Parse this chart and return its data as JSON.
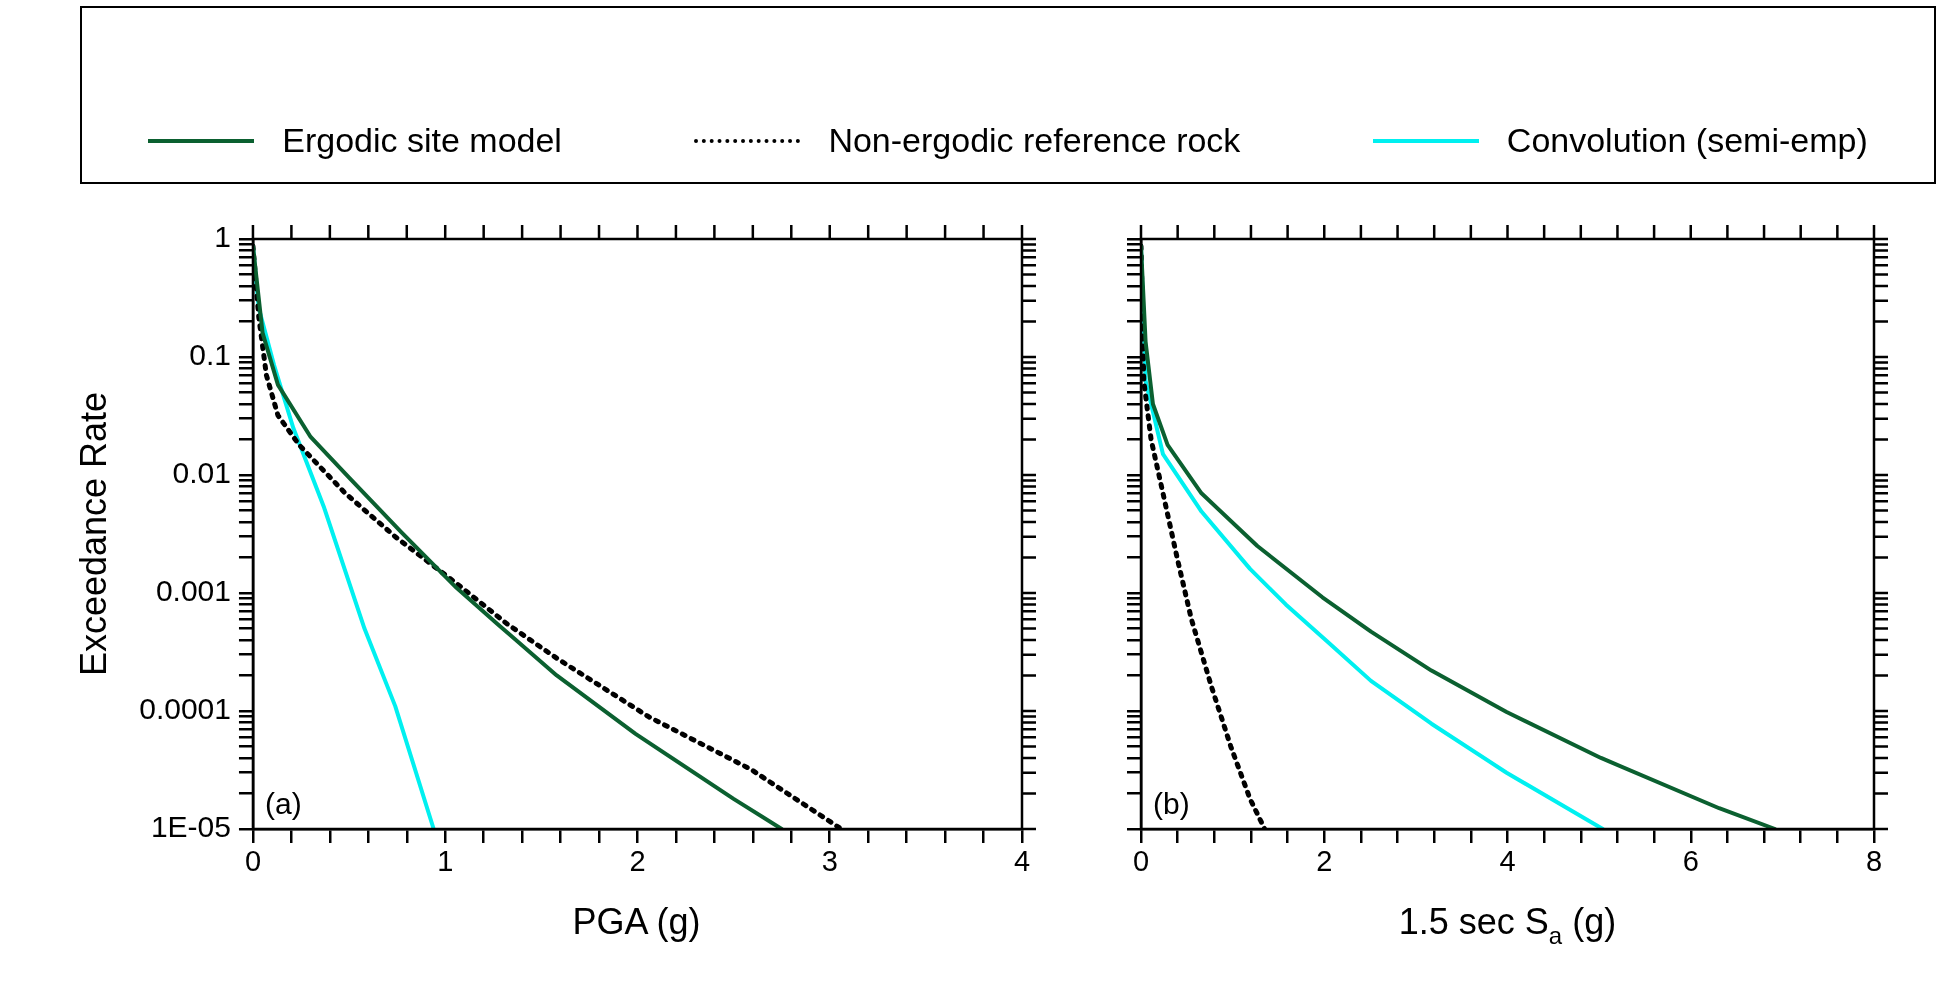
{
  "chart_data": [
    {
      "type": "line",
      "xlabel": "PGA (g)",
      "ylabel": "Exceedance Rate",
      "log": "y",
      "legend": "top",
      "tick_labels": "xy",
      "annotations": [
        "(a)"
      ],
      "xlim": [
        0,
        4
      ],
      "xticks": [
        0,
        {
          "value": 0.2,
          "label": null
        },
        {
          "value": 0.4,
          "label": null
        },
        {
          "value": 0.6,
          "label": null
        },
        {
          "value": 0.8,
          "label": null
        },
        1,
        {
          "value": 1.2,
          "label": null
        },
        {
          "value": 1.4,
          "label": null
        },
        {
          "value": 1.6,
          "label": null
        },
        {
          "value": 1.8,
          "label": null
        },
        2,
        {
          "value": 2.2,
          "label": null
        },
        {
          "value": 2.4,
          "label": null
        },
        {
          "value": 2.6,
          "label": null
        },
        {
          "value": 2.8,
          "label": null
        },
        3,
        {
          "value": 3.2,
          "label": null
        },
        {
          "value": 3.4,
          "label": null
        },
        {
          "value": 3.6,
          "label": null
        },
        {
          "value": 3.8,
          "label": null
        },
        4
      ],
      "ylim": [
        1e-05,
        1
      ],
      "yticks": [
        {
          "value": 1e-05,
          "label": "1E-05"
        },
        {
          "value": 2e-05,
          "label": null
        },
        {
          "value": 3e-05,
          "label": null
        },
        {
          "value": 4e-05,
          "label": null
        },
        {
          "value": 5e-05,
          "label": null
        },
        {
          "value": 6e-05,
          "label": null
        },
        {
          "value": 7e-05,
          "label": null
        },
        {
          "value": 8e-05,
          "label": null
        },
        {
          "value": 9e-05,
          "label": null
        },
        0.0001,
        {
          "value": 0.0002,
          "label": null
        },
        {
          "value": 0.0003,
          "label": null
        },
        {
          "value": 0.0004,
          "label": null
        },
        {
          "value": 0.0005,
          "label": null
        },
        {
          "value": 0.0006,
          "label": null
        },
        {
          "value": 0.0007,
          "label": null
        },
        {
          "value": 0.0008,
          "label": null
        },
        {
          "value": 0.0009,
          "label": null
        },
        0.001,
        {
          "value": 0.002,
          "label": null
        },
        {
          "value": 0.003,
          "label": null
        },
        {
          "value": 0.004,
          "label": null
        },
        {
          "value": 0.005,
          "label": null
        },
        {
          "value": 0.006,
          "label": null
        },
        {
          "value": 0.007,
          "label": null
        },
        {
          "value": 0.008,
          "label": null
        },
        {
          "value": 0.009,
          "label": null
        },
        0.01,
        {
          "value": 0.02,
          "label": null
        },
        {
          "value": 0.03,
          "label": null
        },
        {
          "value": 0.04,
          "label": null
        },
        {
          "value": 0.05,
          "label": null
        },
        {
          "value": 0.06,
          "label": null
        },
        {
          "value": 0.07,
          "label": null
        },
        {
          "value": 0.08,
          "label": null
        },
        {
          "value": 0.09,
          "label": null
        },
        0.1,
        {
          "value": 0.2,
          "label": null
        },
        {
          "value": 0.3,
          "label": null
        },
        {
          "value": 0.4,
          "label": null
        },
        {
          "value": 0.5,
          "label": null
        },
        {
          "value": 0.6,
          "label": null
        },
        {
          "value": 0.7,
          "label": null
        },
        {
          "value": 0.8,
          "label": null
        },
        {
          "value": 0.9,
          "label": null
        },
        1
      ],
      "series": [
        {
          "name": "Ergodic site model",
          "color": "#0b6030",
          "line_style": "solid",
          "x": [
            0,
            0.05,
            0.13,
            0.3,
            0.5,
            0.77,
            1.06,
            1.27,
            1.58,
            1.99,
            2.5,
            2.75
          ],
          "values": [
            0.87,
            0.16,
            0.058,
            0.021,
            0.0095,
            0.0033,
            0.0011,
            0.00055,
            0.0002,
            6.4e-05,
            1.8e-05,
            1e-05
          ]
        },
        {
          "name": "Non-ergodic reference rock",
          "color": "#000000",
          "line_style": "dotted",
          "x": [
            0,
            0.03,
            0.07,
            0.13,
            0.24,
            0.48,
            0.74,
            1.06,
            1.32,
            1.58,
            2.06,
            2.59,
            3.06
          ],
          "values": [
            0.87,
            0.22,
            0.07,
            0.032,
            0.018,
            0.007,
            0.003,
            0.0012,
            0.00055,
            0.00028,
            8.9e-05,
            3.2e-05,
            1e-05
          ]
        },
        {
          "name": "Convolution (semi-emp)",
          "color": "#00f0f0",
          "line_style": "solid",
          "x": [
            0,
            0.03,
            0.11,
            0.21,
            0.37,
            0.58,
            0.74,
            0.94
          ],
          "values": [
            0.87,
            0.26,
            0.085,
            0.025,
            0.0053,
            0.0005,
            0.00011,
            1e-05
          ]
        }
      ]
    },
    {
      "type": "line",
      "xlabel": "1.5 sec S$_{a}$ (g)",
      "log": "y",
      "legend": "top",
      "tick_labels": "x",
      "annotations": [
        "(b)"
      ],
      "xlim": [
        0,
        8
      ],
      "xticks": [
        0,
        {
          "value": 0.4,
          "label": null
        },
        {
          "value": 0.8,
          "label": null
        },
        {
          "value": 1.2,
          "label": null
        },
        {
          "value": 1.6,
          "label": null
        },
        2,
        {
          "value": 2.4,
          "label": null
        },
        {
          "value": 2.8,
          "label": null
        },
        {
          "value": 3.2,
          "label": null
        },
        {
          "value": 3.6,
          "label": null
        },
        4,
        {
          "value": 4.4,
          "label": null
        },
        {
          "value": 4.8,
          "label": null
        },
        {
          "value": 5.2,
          "label": null
        },
        {
          "value": 5.6,
          "label": null
        },
        6,
        {
          "value": 6.4,
          "label": null
        },
        {
          "value": 6.8,
          "label": null
        },
        {
          "value": 7.2,
          "label": null
        },
        {
          "value": 7.6,
          "label": null
        },
        8
      ],
      "ylim": [
        1e-05,
        1
      ],
      "yticks": [
        {
          "value": 1e-05,
          "label": null
        },
        {
          "value": 2e-05,
          "label": null
        },
        {
          "value": 3e-05,
          "label": null
        },
        {
          "value": 4e-05,
          "label": null
        },
        {
          "value": 5e-05,
          "label": null
        },
        {
          "value": 6e-05,
          "label": null
        },
        {
          "value": 7e-05,
          "label": null
        },
        {
          "value": 8e-05,
          "label": null
        },
        {
          "value": 9e-05,
          "label": null
        },
        {
          "value": 0.0001,
          "label": null
        },
        {
          "value": 0.0002,
          "label": null
        },
        {
          "value": 0.0003,
          "label": null
        },
        {
          "value": 0.0004,
          "label": null
        },
        {
          "value": 0.0005,
          "label": null
        },
        {
          "value": 0.0006,
          "label": null
        },
        {
          "value": 0.0007,
          "label": null
        },
        {
          "value": 0.0008,
          "label": null
        },
        {
          "value": 0.0009,
          "label": null
        },
        {
          "value": 0.001,
          "label": null
        },
        {
          "value": 0.002,
          "label": null
        },
        {
          "value": 0.003,
          "label": null
        },
        {
          "value": 0.004,
          "label": null
        },
        {
          "value": 0.005,
          "label": null
        },
        {
          "value": 0.006,
          "label": null
        },
        {
          "value": 0.007,
          "label": null
        },
        {
          "value": 0.008,
          "label": null
        },
        {
          "value": 0.009,
          "label": null
        },
        {
          "value": 0.01,
          "label": null
        },
        {
          "value": 0.02,
          "label": null
        },
        {
          "value": 0.03,
          "label": null
        },
        {
          "value": 0.04,
          "label": null
        },
        {
          "value": 0.05,
          "label": null
        },
        {
          "value": 0.06,
          "label": null
        },
        {
          "value": 0.07,
          "label": null
        },
        {
          "value": 0.08,
          "label": null
        },
        {
          "value": 0.09,
          "label": null
        },
        {
          "value": 0.1,
          "label": null
        },
        {
          "value": 0.2,
          "label": null
        },
        {
          "value": 0.3,
          "label": null
        },
        {
          "value": 0.4,
          "label": null
        },
        {
          "value": 0.5,
          "label": null
        },
        {
          "value": 0.6,
          "label": null
        },
        {
          "value": 0.7,
          "label": null
        },
        {
          "value": 0.8,
          "label": null
        },
        {
          "value": 0.9,
          "label": null
        },
        {
          "value": 1,
          "label": null
        }
      ],
      "series": [
        {
          "name": "Ergodic site model",
          "color": "#0b6030",
          "line_style": "solid",
          "x": [
            0,
            0.05,
            0.13,
            0.29,
            0.66,
            1.27,
            1.98,
            2.51,
            3.17,
            3.99,
            5.02,
            6.31,
            6.92
          ],
          "values": [
            0.87,
            0.135,
            0.04,
            0.018,
            0.007,
            0.0025,
            0.00092,
            0.00047,
            0.00022,
            9.8e-05,
            4e-05,
            1.5e-05,
            1e-05
          ]
        },
        {
          "name": "Non-ergodic reference rock",
          "color": "#000000",
          "line_style": "dotted",
          "x": [
            0,
            0.03,
            0.11,
            0.24,
            0.4,
            0.55,
            0.77,
            0.98,
            1.19,
            1.35
          ],
          "values": [
            0.87,
            0.063,
            0.02,
            0.007,
            0.0019,
            0.0006,
            0.00016,
            5e-05,
            1.8e-05,
            1e-05
          ]
        },
        {
          "name": "Convolution (semi-emp)",
          "color": "#00f0f0",
          "line_style": "solid",
          "x": [
            0,
            0.05,
            0.24,
            0.66,
            1.19,
            1.58,
            2.03,
            2.51,
            3.17,
            3.99,
            5.04
          ],
          "values": [
            0.87,
            0.063,
            0.015,
            0.0049,
            0.0016,
            0.0008,
            0.00039,
            0.00018,
            7.8e-05,
            3e-05,
            1e-05
          ]
        }
      ]
    }
  ]
}
